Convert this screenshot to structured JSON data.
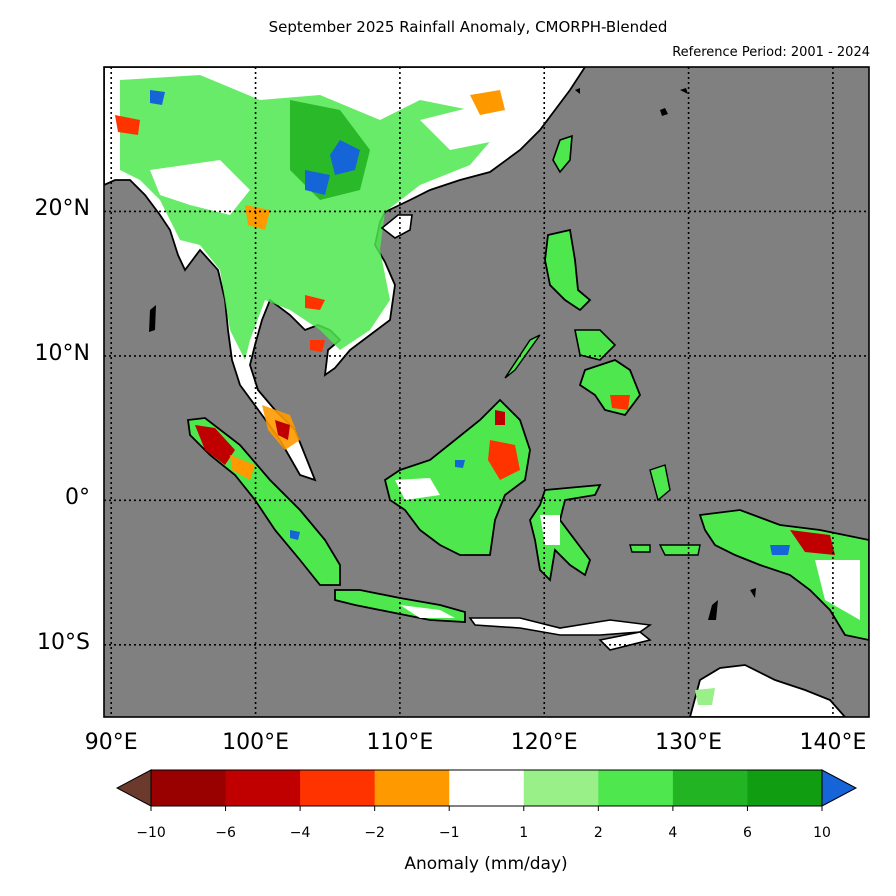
{
  "title": "September 2025 Rainfall Anomaly, CMORPH-Blended",
  "reference_period": "Reference Period: 2001 - 2024",
  "map": {
    "lon_range": [
      89.5,
      142.5
    ],
    "lat_range": [
      -15,
      30
    ],
    "ocean_color": "#808080",
    "gridlines": "dotted",
    "lat_ticks": [
      {
        "value": 20,
        "label": "20°N"
      },
      {
        "value": 10,
        "label": "10°N"
      },
      {
        "value": 0,
        "label": "0°"
      },
      {
        "value": -10,
        "label": "10°S"
      }
    ],
    "lon_ticks": [
      {
        "value": 90,
        "label": "90°E"
      },
      {
        "value": 100,
        "label": "100°E"
      },
      {
        "value": 110,
        "label": "110°E"
      },
      {
        "value": 120,
        "label": "120°E"
      },
      {
        "value": 130,
        "label": "130°E"
      },
      {
        "value": 140,
        "label": "140°E"
      }
    ]
  },
  "colorbar": {
    "label": "Anomaly (mm/day)",
    "ticks": [
      "−10",
      "−6",
      "−4",
      "−2",
      "−1",
      "1",
      "2",
      "4",
      "6",
      "10"
    ],
    "under_color": "#6b3a2c",
    "over_color": "#1565d8",
    "bins": [
      "#990000",
      "#c00000",
      "#ff3300",
      "#ff9900",
      "#ffffff",
      "#99f088",
      "#4ee84e",
      "#22b422",
      "#119d11"
    ]
  }
}
